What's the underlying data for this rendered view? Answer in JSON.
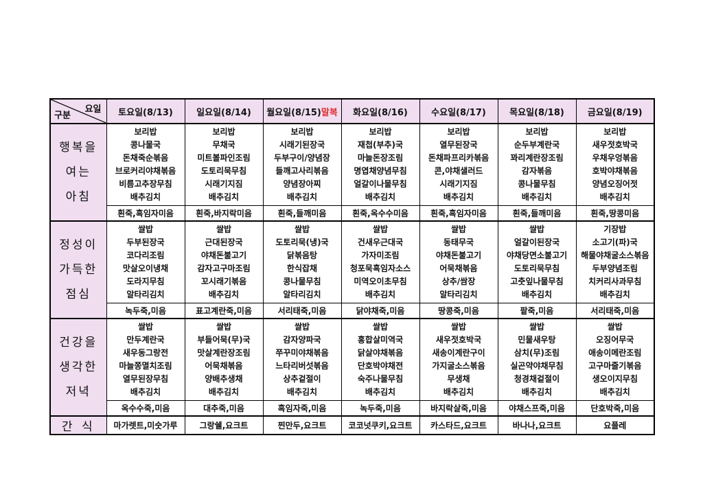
{
  "header": {
    "corner": {
      "top": "요일",
      "bottom": "구분"
    },
    "days": [
      {
        "label": "토요일(8/13)"
      },
      {
        "label": "일요일(8/14)"
      },
      {
        "label": "월요일(8/15)",
        "badge": "말복"
      },
      {
        "label": "화요일(8/16)"
      },
      {
        "label": "수요일(8/17)"
      },
      {
        "label": "목요일(8/18)"
      },
      {
        "label": "금요일(8/19)"
      }
    ],
    "badge_color": "#e02b2b"
  },
  "sections": [
    {
      "label": [
        "행복을",
        "여는",
        "아침"
      ],
      "menus": [
        [
          "보리밥",
          "콩나물국",
          "돈채죽순볶음",
          "브로커리야채볶음",
          "비름고추장무침",
          "배추김치"
        ],
        [
          "보리밥",
          "무채국",
          "미트볼파인조림",
          "도토리묵무침",
          "시래기지짐",
          "배추김치"
        ],
        [
          "보리밥",
          "시래기된장국",
          "두부구이/양념장",
          "들깨고사리볶음",
          "양념장아찌",
          "배추김치"
        ],
        [
          "보리밥",
          "재첩(부추)국",
          "마늘돈장조림",
          "명엽채양념무침",
          "얼갈이나물무침",
          "배추김치"
        ],
        [
          "보리밥",
          "열무된장국",
          "돈채파프리카볶음",
          "콘,야채샐러드",
          "시래기지짐",
          "배추김치"
        ],
        [
          "보리밥",
          "순두부계란국",
          "꽈리계란장조림",
          "감자볶음",
          "콩나물무침",
          "배추김치"
        ],
        [
          "보리밥",
          "새우젓호박국",
          "우채우엉볶음",
          "호박야채볶음",
          "양념오징어젓",
          "배추김치"
        ]
      ],
      "porridge": [
        "흰죽,흑임자미음",
        "흰죽,바지락미음",
        "흰죽,들깨미음",
        "흰죽,옥수수미음",
        "흰죽,흑임자미음",
        "흰죽,들깨미음",
        "흰죽,땅콩미음"
      ]
    },
    {
      "label": [
        "정성이",
        "가득한",
        "점심"
      ],
      "menus": [
        [
          "쌀밥",
          "두부된장국",
          "코다리조림",
          "맛살오이냉채",
          "도라지무침",
          "알타리김치"
        ],
        [
          "쌀밥",
          "근대된장국",
          "야채돈불고기",
          "감자고구마조림",
          "꼬시래기볶음",
          "배추김치"
        ],
        [
          "쌀밥",
          "도토리묵(냉)국",
          "닭볶음탕",
          "한식잡채",
          "콩나물무침",
          "알타리김치"
        ],
        [
          "쌀밥",
          "건새우근대국",
          "가자미조림",
          "청포묵흑임자소스",
          "미역오이초무침",
          "배추김치"
        ],
        [
          "쌀밥",
          "동태무국",
          "야채돈불고기",
          "어묵채볶음",
          "상추/쌈장",
          "알타리김치"
        ],
        [
          "쌀밥",
          "얼갈이된장국",
          "야채당면소불고기",
          "도토리묵무침",
          "고춧잎나물무침",
          "배추김치"
        ],
        [
          "기장밥",
          "소고기(파)국",
          "해물야채굴소스볶음",
          "두부양념조림",
          "치커리사과무침",
          "배추김치"
        ]
      ],
      "porridge": [
        "녹두죽,미음",
        "표고계란죽,미음",
        "서리태죽,미음",
        "닭야채죽,미음",
        "땅콩죽,미음",
        "팥죽,미음",
        "서리태죽,미음"
      ]
    },
    {
      "label": [
        "건강을",
        "생각한",
        "저녁"
      ],
      "menus": [
        [
          "쌀밥",
          "만두계란국",
          "새우동그랑전",
          "마늘쫑멸치조림",
          "열무된장무침",
          "배추김치"
        ],
        [
          "쌀밥",
          "부들어묵(무)국",
          "맛살계란장조림",
          "어묵채볶음",
          "양배추생채",
          "배추김치"
        ],
        [
          "쌀밥",
          "감자양파국",
          "쭈꾸미야채볶음",
          "느타리버섯볶음",
          "상추겉절이",
          "배추김치"
        ],
        [
          "쌀밥",
          "홍합살미역국",
          "닭살야채볶음",
          "단호박야채전",
          "숙주나물무침",
          "배추김치"
        ],
        [
          "쌀밥",
          "새우젓호박국",
          "새송이계란구이",
          "가지굴소스볶음",
          "무생채",
          "배추김치"
        ],
        [
          "쌀밥",
          "민물새우탕",
          "삼치(무)조림",
          "실곤약야채무침",
          "청경채겉절이",
          "배추김치"
        ],
        [
          "쌀밥",
          "오징어무국",
          "애송이메란조림",
          "고구마줄기볶음",
          "생오이지무침",
          "배추김치"
        ]
      ],
      "porridge": [
        "옥수수죽,미음",
        "대추죽,미음",
        "흑임자죽,미음",
        "녹두죽,미음",
        "바지락살죽,미음",
        "야채스프죽,미음",
        "단호박죽,미음"
      ]
    }
  ],
  "snack": {
    "label": "간 식",
    "items": [
      "마가렛트,미숫가루",
      "그랑쉘,요크트",
      "찐만두,요크트",
      "코코넛쿠키,요크트",
      "카스타드,요크트",
      "바나나,요크트",
      "요플레"
    ]
  },
  "colors": {
    "header_bg": "#f0def0",
    "cell_bg": "#ffffff",
    "border": "#000000",
    "badge_red": "#e02b2b"
  }
}
